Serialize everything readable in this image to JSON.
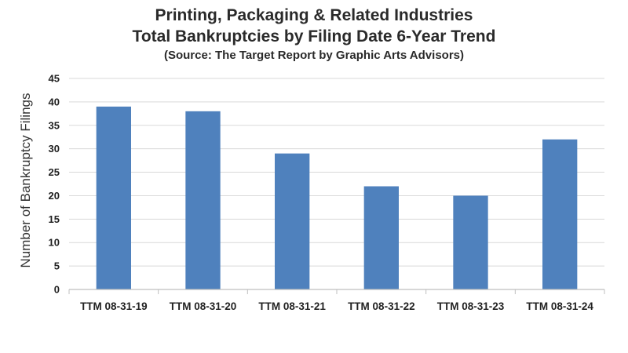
{
  "chart_data": {
    "type": "bar",
    "title": "Printing, Packaging & Related Industries",
    "subtitle": "Total Bankruptcies by Filing Date 6-Year Trend",
    "source_note": "(Source: The Target Report by Graphic Arts Advisors)",
    "xlabel": "",
    "ylabel": "Number of Bankruptcy Filings",
    "categories": [
      "TTM 08-31-19",
      "TTM 08-31-20",
      "TTM 08-31-21",
      "TTM 08-31-22",
      "TTM 08-31-23",
      "TTM 08-31-24"
    ],
    "values": [
      39,
      38,
      29,
      22,
      20,
      32
    ],
    "ylim": [
      0,
      45
    ],
    "yticks": [
      0,
      5,
      10,
      15,
      20,
      25,
      30,
      35,
      40,
      45
    ],
    "grid": true,
    "legend": "none",
    "bar_color": "#4f81bd",
    "grid_color": "#d9d9d9"
  }
}
